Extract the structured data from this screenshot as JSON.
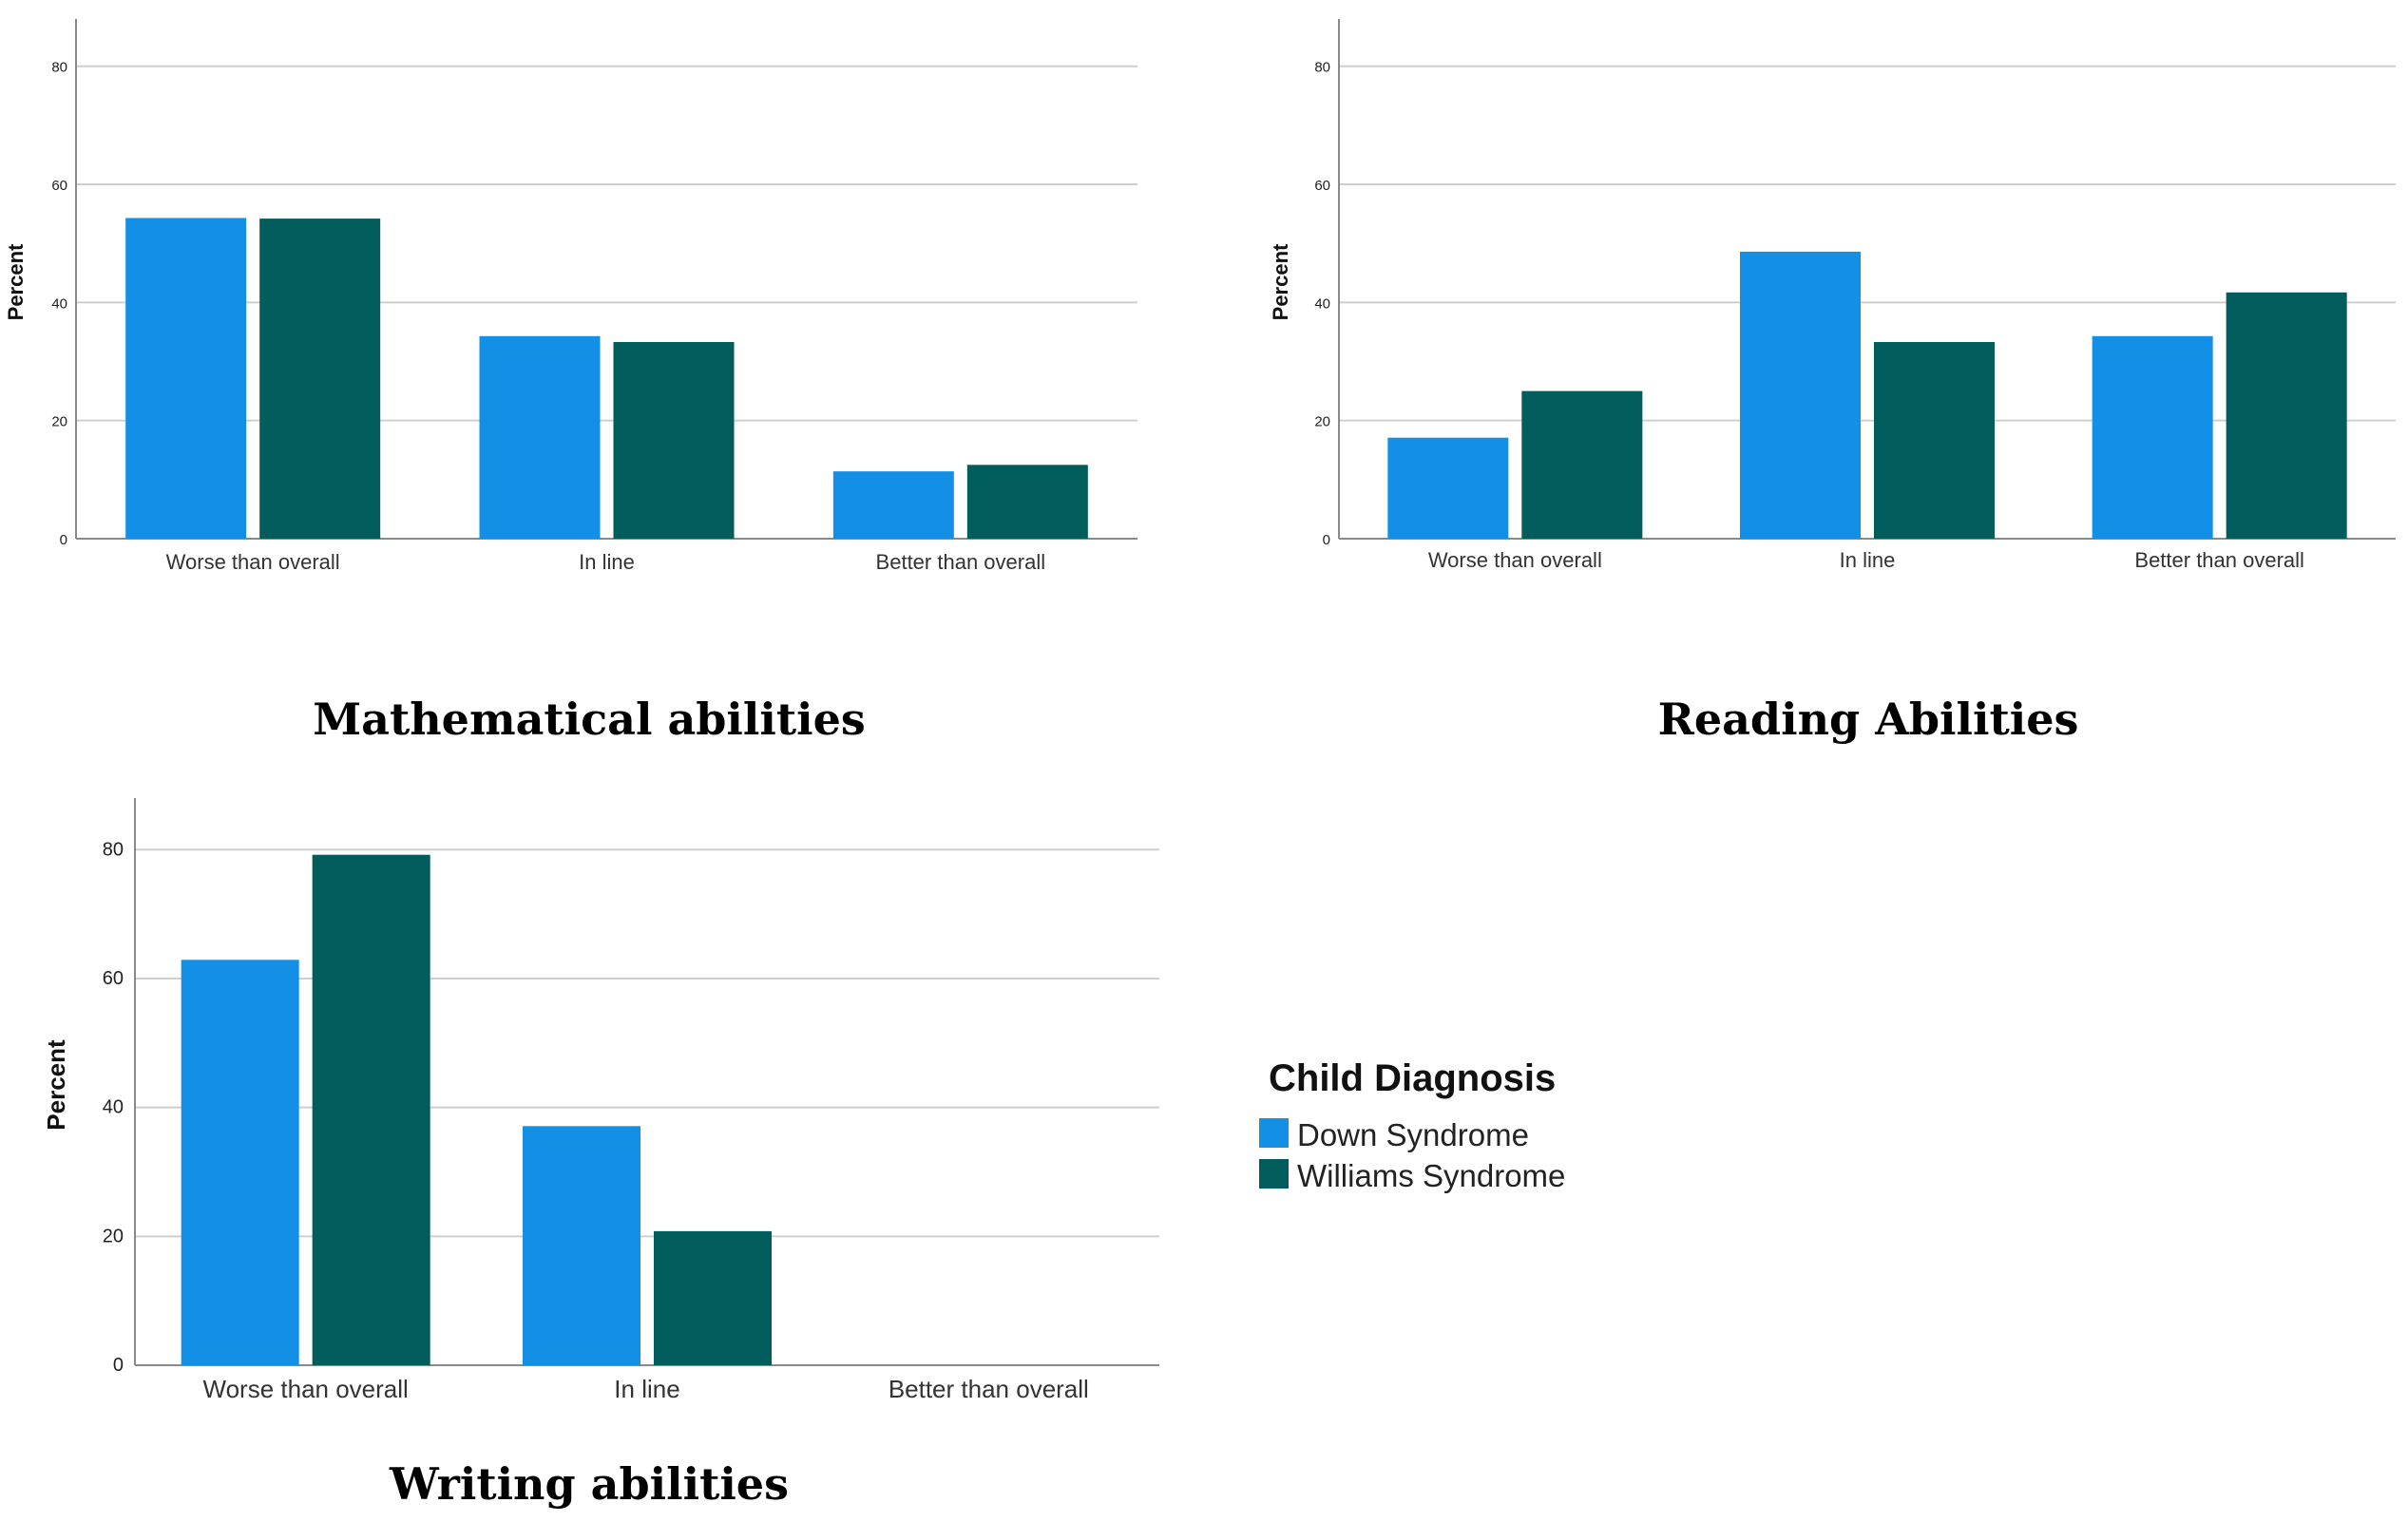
{
  "legend": {
    "title": "Child Diagnosis",
    "items": [
      {
        "label": "Down Syndrome",
        "color": "#1390e6"
      },
      {
        "label": "Williams Syndrome",
        "color": "#005d5b"
      }
    ]
  },
  "chart_data": [
    {
      "type": "bar",
      "title": "Mathematical abilities",
      "xlabel": "",
      "ylabel": "Percent",
      "ylim": [
        0,
        88
      ],
      "yticks": [
        "0",
        "20",
        "40",
        "60",
        "80"
      ],
      "grid": true,
      "categories": [
        "Worse than overall",
        "In line",
        "Better than overall"
      ],
      "series": [
        {
          "name": "Down Syndrome",
          "values": [
            54.3,
            34.3,
            11.4
          ]
        },
        {
          "name": "Williams Syndrome",
          "values": [
            54.2,
            33.3,
            12.5
          ]
        }
      ]
    },
    {
      "type": "bar",
      "title": "Reading Abilities",
      "xlabel": "",
      "ylabel": "Percent",
      "ylim": [
        0,
        88
      ],
      "yticks": [
        "0",
        "20",
        "40",
        "60",
        "80"
      ],
      "grid": true,
      "categories": [
        "Worse than overall",
        "In line",
        "Better than overall"
      ],
      "series": [
        {
          "name": "Down Syndrome",
          "values": [
            17.1,
            48.6,
            34.3
          ]
        },
        {
          "name": "Williams Syndrome",
          "values": [
            25.0,
            33.3,
            41.7
          ]
        }
      ]
    },
    {
      "type": "bar",
      "title": "Writing abilities",
      "xlabel": "",
      "ylabel": "Percent",
      "ylim": [
        0,
        88
      ],
      "yticks": [
        "0",
        "20",
        "40",
        "60",
        "80"
      ],
      "grid": true,
      "categories": [
        "Worse than overall",
        "In line",
        "Better than overall"
      ],
      "series": [
        {
          "name": "Down Syndrome",
          "values": [
            62.9,
            37.1,
            0
          ]
        },
        {
          "name": "Williams Syndrome",
          "values": [
            79.2,
            20.8,
            0
          ]
        }
      ]
    }
  ]
}
